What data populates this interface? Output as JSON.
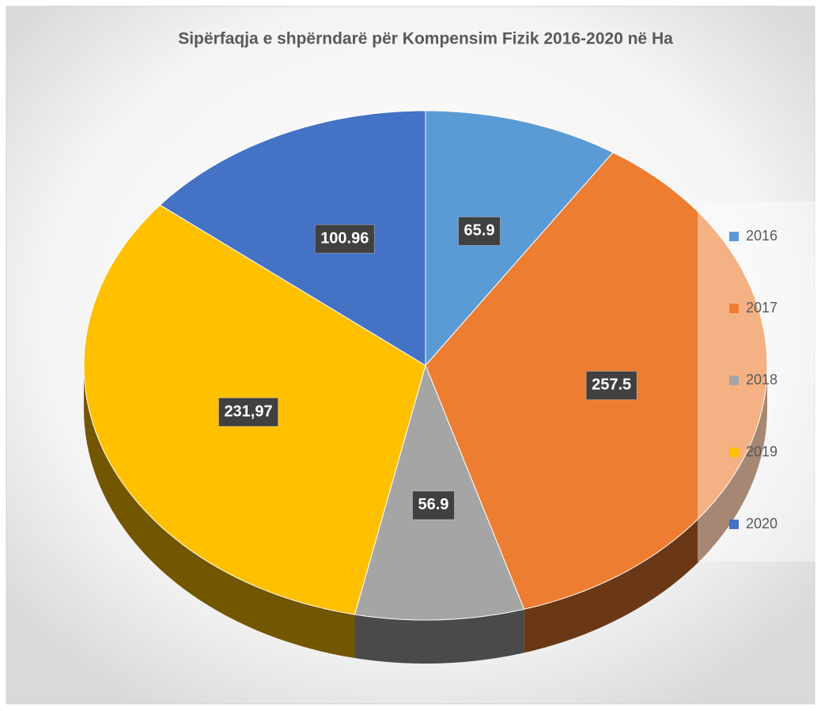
{
  "chart_data": {
    "type": "pie",
    "title": "Sipërfaqja e shpërndarë për Kompensim Fizik 2016-2020 në Ha",
    "categories": [
      "2016",
      "2017",
      "2018",
      "2019",
      "2020"
    ],
    "values": [
      65.9,
      257.5,
      56.9,
      231.97,
      100.96
    ],
    "value_labels": [
      "65.9",
      "257.5",
      "56.9",
      "231,97",
      "100.96"
    ],
    "colors": [
      "#5b9bd5",
      "#ed7d31",
      "#a5a5a5",
      "#ffc000",
      "#4472c4"
    ],
    "legend": "right"
  }
}
